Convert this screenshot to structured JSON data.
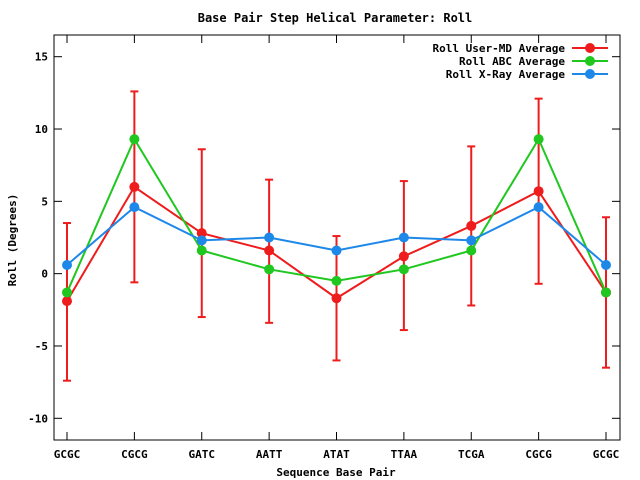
{
  "chart_data": {
    "type": "line",
    "title": "Base Pair Step Helical Parameter: Roll",
    "xlabel": "Sequence Base Pair",
    "ylabel": "Roll (Degrees)",
    "categories": [
      "GCGC",
      "CGCG",
      "GATC",
      "AATT",
      "ATAT",
      "TTAA",
      "TCGA",
      "CGCG",
      "GCGC"
    ],
    "ylim": [
      -11.5,
      16.5
    ],
    "yticks": [
      -10,
      -5,
      0,
      5,
      10,
      15
    ],
    "ytick_labels": [
      "-10",
      "-5",
      "0",
      "5",
      "10",
      "15"
    ],
    "grid": false,
    "legend_position": "top-right",
    "series": [
      {
        "name": "Roll User-MD Average",
        "color": "#ee1c1c",
        "values": [
          -1.9,
          6.0,
          2.8,
          1.6,
          -1.7,
          1.2,
          3.3,
          5.7,
          -1.3
        ],
        "error_low": [
          -7.4,
          -0.6,
          -3.0,
          -3.4,
          -6.0,
          -3.9,
          -2.2,
          -0.7,
          -6.5
        ],
        "error_high": [
          3.5,
          12.6,
          8.6,
          6.5,
          2.6,
          6.4,
          8.8,
          12.1,
          3.9
        ]
      },
      {
        "name": "Roll ABC Average",
        "color": "#1fc71f",
        "values": [
          -1.3,
          9.3,
          1.6,
          0.3,
          -0.5,
          0.3,
          1.6,
          9.3,
          -1.3
        ]
      },
      {
        "name": "Roll X-Ray Average",
        "color": "#1e88e8",
        "values": [
          0.6,
          4.6,
          2.3,
          2.5,
          1.6,
          2.5,
          2.3,
          4.6,
          0.6
        ]
      }
    ]
  }
}
